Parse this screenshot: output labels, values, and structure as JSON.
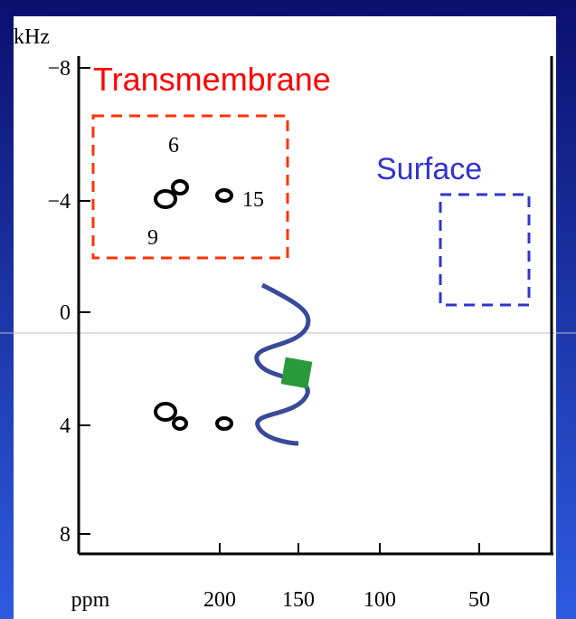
{
  "y_axis": {
    "label": "kHz",
    "ticks": [
      "−8",
      "−4",
      "0",
      "4",
      "8"
    ]
  },
  "x_axis": {
    "label": "ppm",
    "ticks": [
      "200",
      "150",
      "100",
      "50"
    ]
  },
  "peak_labels": [
    "6",
    "15",
    "9"
  ],
  "regions": [
    "Transmembrane",
    "Surface"
  ]
}
